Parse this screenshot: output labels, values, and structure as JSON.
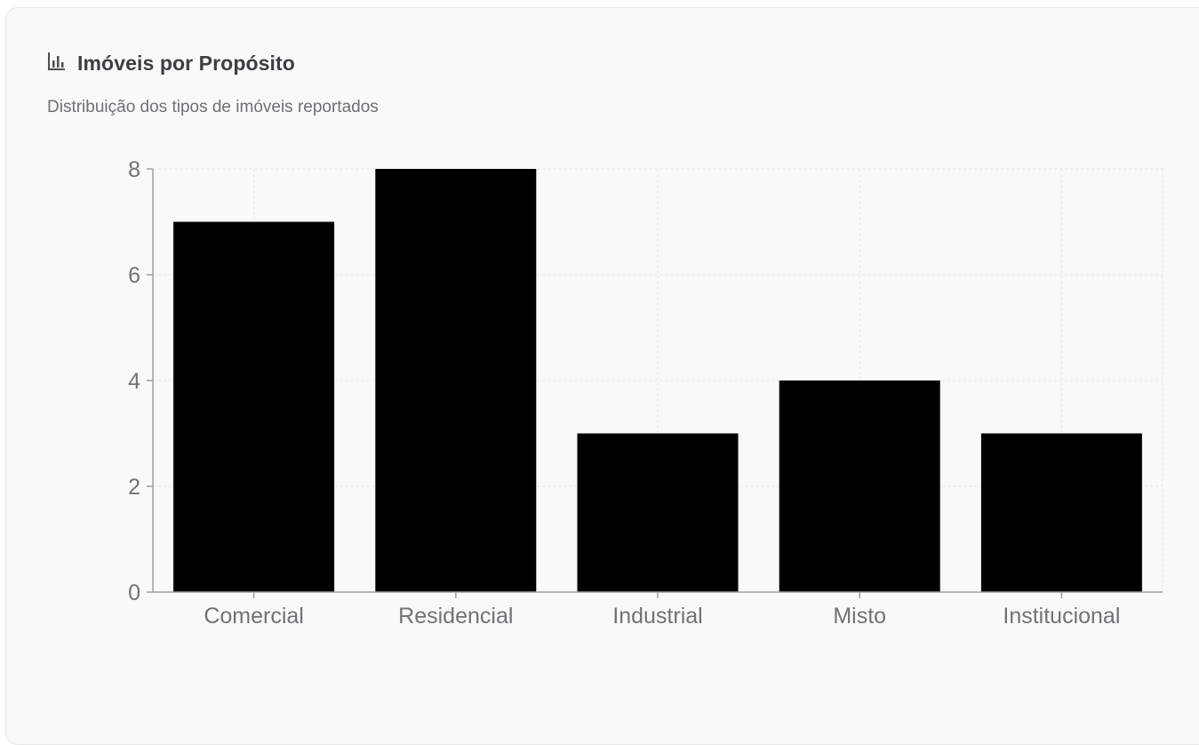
{
  "card": {
    "title": "Imóveis por Propósito",
    "subtitle": "Distribuição dos tipos de imóveis reportados",
    "icon": "bar-chart-icon"
  },
  "colors": {
    "bar": "#000000",
    "grid": "#e3e6ea",
    "axis": "#9aa0a6",
    "card_bg": "#f8f9fa"
  },
  "chart_data": {
    "type": "bar",
    "categories": [
      "Comercial",
      "Residencial",
      "Industrial",
      "Misto",
      "Institucional"
    ],
    "values": [
      7,
      8,
      3,
      4,
      3
    ],
    "title": "",
    "xlabel": "",
    "ylabel": "",
    "ylim": [
      0,
      8
    ],
    "yticks": [
      0,
      2,
      4,
      6,
      8
    ],
    "grid": true,
    "legend": "none"
  }
}
